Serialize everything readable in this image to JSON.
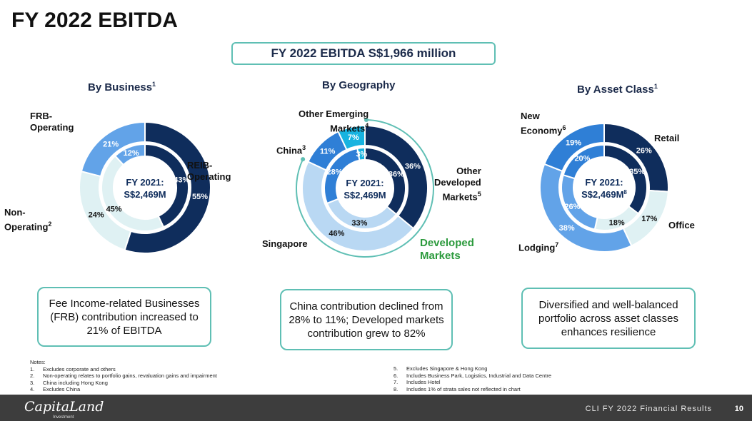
{
  "title": "FY 2022 EBITDA",
  "headline": "FY 2022 EBITDA S$1,966 million",
  "colors": {
    "navy": "#0f2d5c",
    "mid_blue": "#2f7fd6",
    "light_blue": "#62a3e8",
    "pale_blue": "#b9d8f3",
    "very_pale": "#dff1f3",
    "cyan": "#17b3e0",
    "teal": "#5fbfb4",
    "green": "#2b9a3c"
  },
  "chart_data": [
    {
      "type": "pie",
      "title": "By Business",
      "title_sup": "1",
      "center_label": [
        "FY 2021:",
        "S$2,469M"
      ],
      "outer_ring": {
        "label": "FY 2022",
        "categories": [
          "REIB-Operating",
          "Non-Operating",
          "FRB-Operating"
        ],
        "values": [
          55,
          24,
          21
        ]
      },
      "inner_ring": {
        "label": "FY 2021",
        "categories": [
          "REIB-Operating",
          "Non-Operating",
          "FRB-Operating"
        ],
        "values": [
          43,
          45,
          12
        ]
      },
      "legend": [
        {
          "text": "REIB-",
          "text2": "Operating",
          "sup": ""
        },
        {
          "text": "Non-",
          "text2": "Operating",
          "sup": "2"
        },
        {
          "text": "FRB-",
          "text2": "Operating",
          "sup": ""
        }
      ]
    },
    {
      "type": "pie",
      "title": "By Geography",
      "title_sup": "",
      "center_label": [
        "FY 2021:",
        "S$2,469M"
      ],
      "outer_ring": {
        "label": "FY 2022",
        "categories": [
          "Other Developed Markets",
          "Singapore",
          "China",
          "Other Emerging Markets"
        ],
        "values": [
          36,
          46,
          11,
          7
        ]
      },
      "inner_ring": {
        "label": "FY 2021",
        "categories": [
          "Other Developed Markets",
          "Singapore",
          "China",
          "Other Emerging Markets"
        ],
        "values": [
          36,
          33,
          28,
          3
        ]
      },
      "legend": [
        {
          "text": "Other",
          "text2": "Developed",
          "text3": "Markets",
          "sup": "5"
        },
        {
          "text": "Singapore",
          "sup": ""
        },
        {
          "text": "China",
          "sup": "3"
        },
        {
          "text": "Other Emerging",
          "text2": "Markets",
          "sup": "4"
        }
      ],
      "developed_label": [
        "Developed",
        "Markets"
      ]
    },
    {
      "type": "pie",
      "title": "By Asset Class",
      "title_sup": "1",
      "center_label": [
        "FY 2021:",
        "S$2,469M"
      ],
      "center_sup": "8",
      "outer_ring": {
        "label": "FY 2022",
        "categories": [
          "Retail",
          "Office",
          "Lodging",
          "New Economy"
        ],
        "values": [
          26,
          17,
          38,
          19
        ]
      },
      "inner_ring": {
        "label": "FY 2021",
        "categories": [
          "Retail",
          "Office",
          "Lodging",
          "New Economy"
        ],
        "values": [
          35,
          18,
          26,
          20
        ]
      },
      "legend": [
        {
          "text": "Retail",
          "sup": ""
        },
        {
          "text": "Office",
          "sup": ""
        },
        {
          "text": "Lodging",
          "sup": "7"
        },
        {
          "text": "New",
          "text2": "Economy",
          "sup": "6"
        }
      ]
    }
  ],
  "boxes": [
    "Fee Income-related Businesses (FRB) contribution increased to 21% of EBITDA",
    "China contribution declined from 28% to 11%; Developed markets contribution grew to 82%",
    "Diversified and well-balanced portfolio across asset classes enhances resilience"
  ],
  "notes_header": "Notes:",
  "notes_left": [
    {
      "num": "1.",
      "text": "Excludes corporate and others"
    },
    {
      "num": "2.",
      "text": "Non-operating relates to portfolio gains, revaluation gains and impairment"
    },
    {
      "num": "3.",
      "text": "China including Hong Kong"
    },
    {
      "num": "4.",
      "text": "Excludes China"
    }
  ],
  "notes_right": [
    {
      "num": "5.",
      "text": "Excludes Singapore & Hong Kong"
    },
    {
      "num": "6.",
      "text": "Includes Business Park, Logistics, Industrial and Data Centre"
    },
    {
      "num": "7.",
      "text": "Includes Hotel"
    },
    {
      "num": "8.",
      "text": "Includes 1% of strata sales not reflected in chart"
    }
  ],
  "footer": {
    "logo": "CapitaLand",
    "logo_sub": "Investment",
    "text": "CLI FY 2022 Financial Results",
    "page": "10"
  }
}
